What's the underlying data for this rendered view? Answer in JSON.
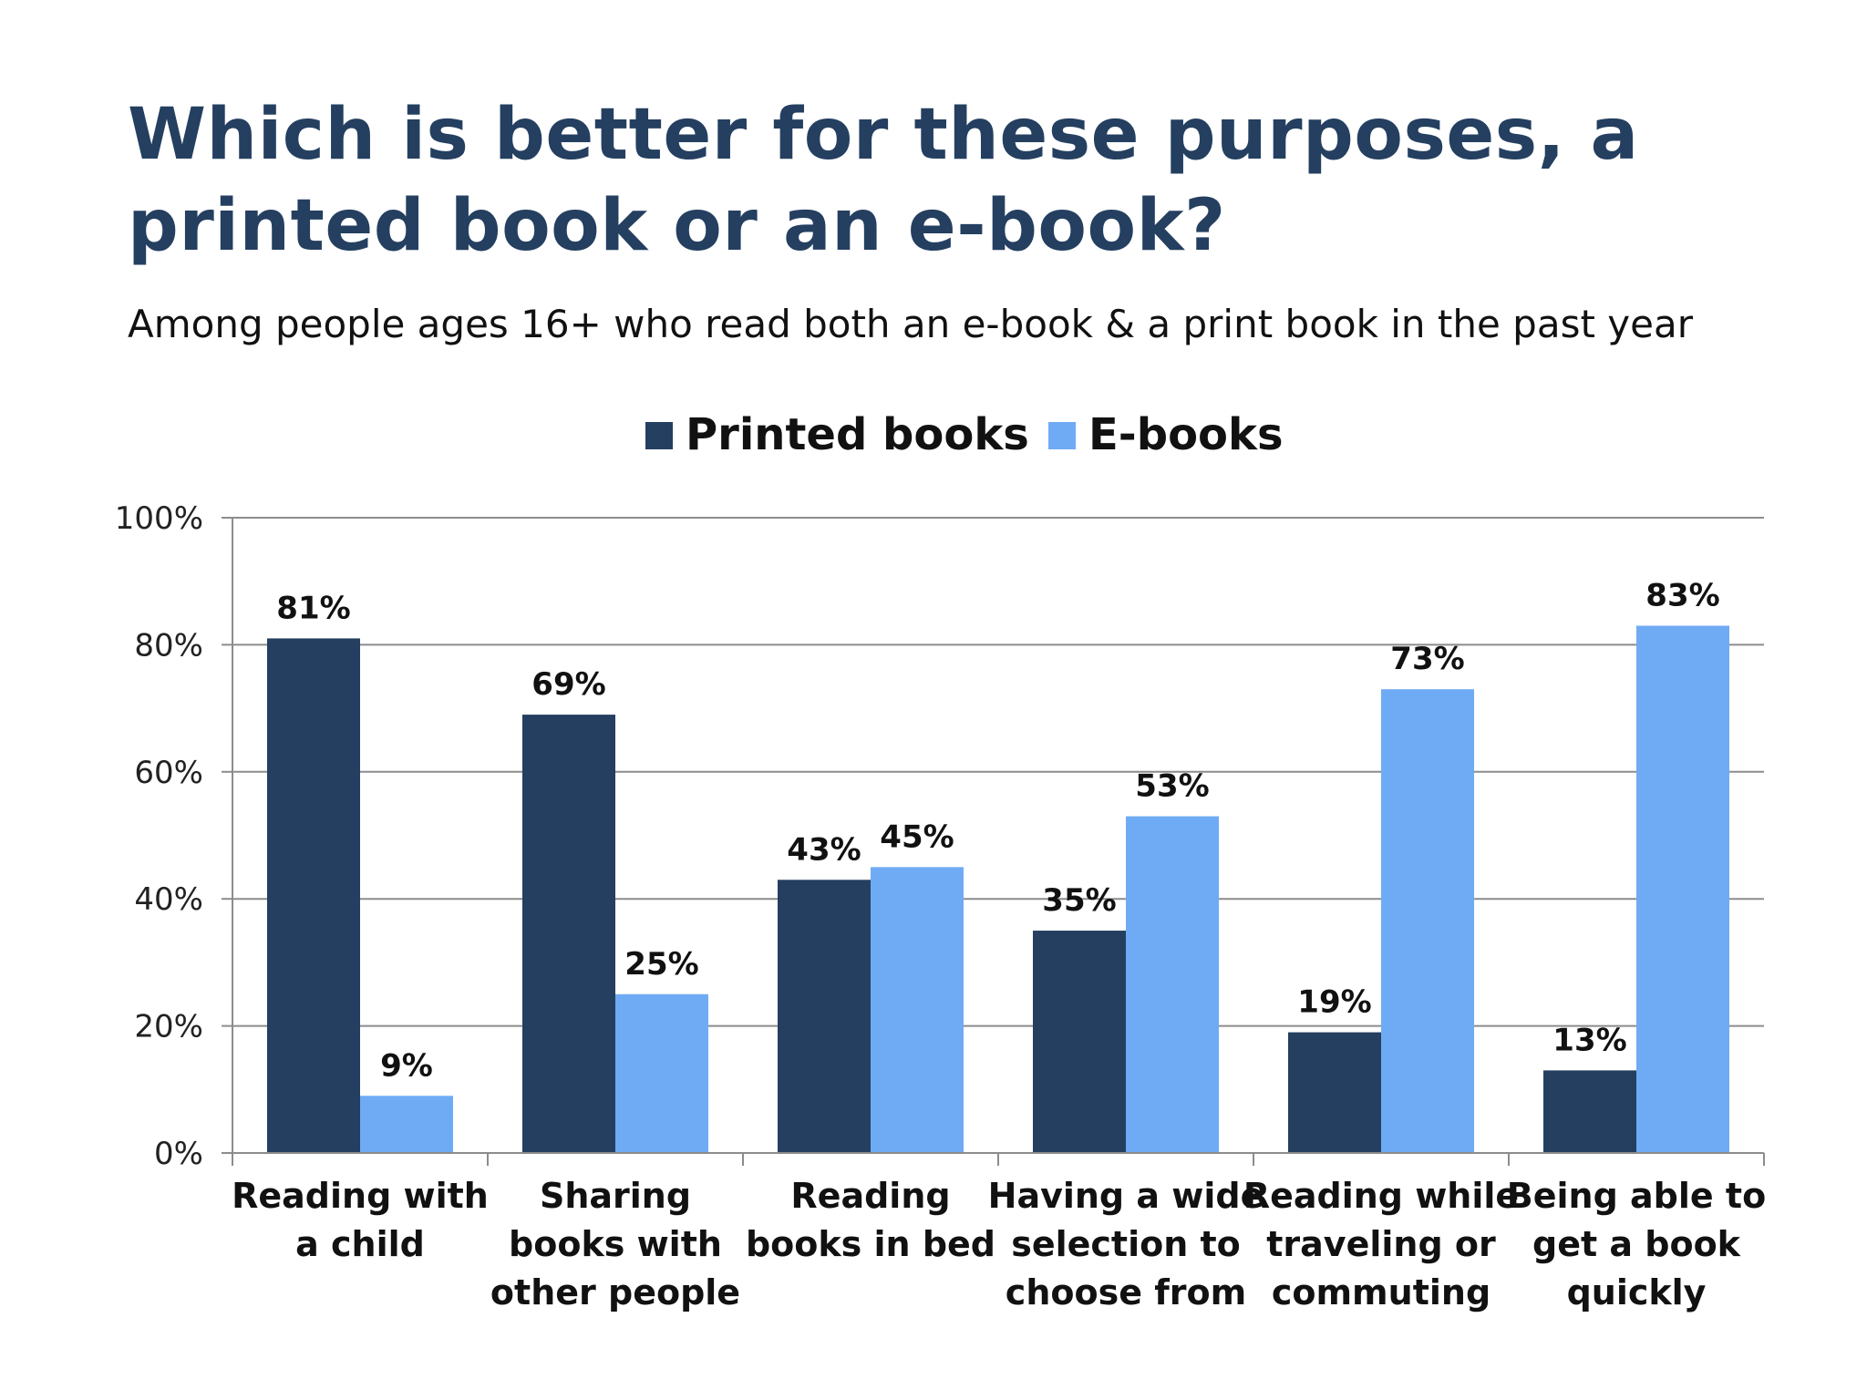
{
  "page": {
    "title": "Which is better for these purposes, a printed book or an e-book?",
    "subtitle": "Among people ages 16+ who read both an e-book & a print book in the past year"
  },
  "chart_data": {
    "type": "bar",
    "title": "Which is better for these purposes, a printed book or an e-book?",
    "subtitle": "Among people ages 16+ who read both an e-book & a print book in the past year",
    "categories": [
      [
        "Reading with",
        "a child"
      ],
      [
        "Sharing",
        "books with",
        "other people"
      ],
      [
        "Reading",
        "books in bed"
      ],
      [
        "Having a wide",
        "selection to",
        "choose from"
      ],
      [
        "Reading while",
        "traveling or",
        "commuting"
      ],
      [
        "Being able to",
        "get a book",
        "quickly"
      ]
    ],
    "series": [
      {
        "name": "Printed books",
        "color": "#243f60",
        "values": [
          81,
          69,
          43,
          35,
          19,
          13
        ]
      },
      {
        "name": "E-books",
        "color": "#6fabf5",
        "values": [
          9,
          25,
          45,
          53,
          73,
          83
        ]
      }
    ],
    "value_suffix": "%",
    "ylim": [
      0,
      100
    ],
    "yticks": [
      0,
      20,
      40,
      60,
      80,
      100
    ],
    "ytick_labels": [
      "0%",
      "20%",
      "40%",
      "60%",
      "80%",
      "100%"
    ],
    "xlabel": "",
    "ylabel": "",
    "grid": true,
    "legend_position": "top-center",
    "data_labels": true
  }
}
